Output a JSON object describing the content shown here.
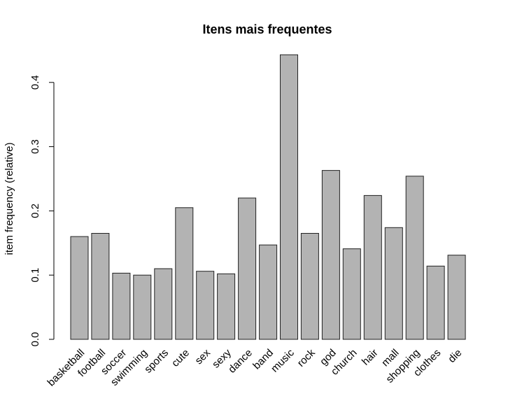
{
  "chart_data": {
    "type": "bar",
    "title": "Itens mais frequentes",
    "xlabel": "",
    "ylabel": "item frequency (relative)",
    "ylim": [
      0,
      0.44
    ],
    "yticks": [
      0.0,
      0.1,
      0.2,
      0.3,
      0.4
    ],
    "ytick_labels": [
      "0.0",
      "0.1",
      "0.2",
      "0.3",
      "0.4"
    ],
    "categories": [
      "basketball",
      "football",
      "soccer",
      "swimming",
      "sports",
      "cute",
      "sex",
      "sexy",
      "dance",
      "band",
      "music",
      "rock",
      "god",
      "church",
      "hair",
      "mall",
      "shopping",
      "clothes",
      "die"
    ],
    "values": [
      0.16,
      0.165,
      0.103,
      0.1,
      0.11,
      0.205,
      0.106,
      0.102,
      0.22,
      0.147,
      0.443,
      0.165,
      0.263,
      0.141,
      0.224,
      0.174,
      0.254,
      0.114,
      0.131
    ],
    "bar_color": "#b3b3b3",
    "grid": false,
    "legend": "none"
  }
}
